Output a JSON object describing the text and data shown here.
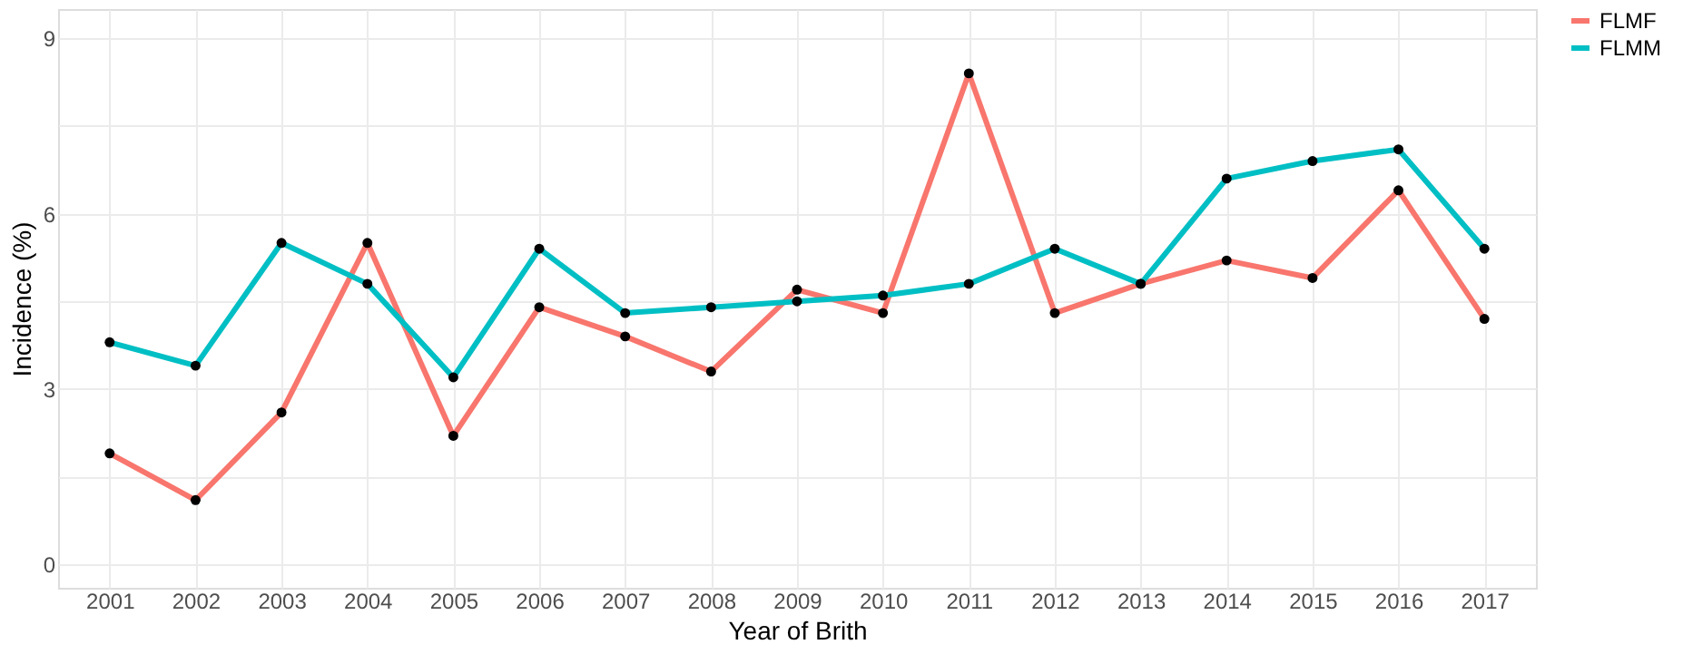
{
  "chart_data": {
    "type": "line",
    "xlabel": "Year of Brith",
    "ylabel": "Incidence (%)",
    "categories": [
      "2001",
      "2002",
      "2003",
      "2004",
      "2005",
      "2006",
      "2007",
      "2008",
      "2009",
      "2010",
      "2011",
      "2012",
      "2013",
      "2014",
      "2015",
      "2016",
      "2017"
    ],
    "series": [
      {
        "name": "FLMF",
        "color": "#f8766d",
        "values": [
          1.9,
          1.1,
          2.6,
          5.5,
          2.2,
          4.4,
          3.9,
          3.3,
          4.7,
          4.3,
          8.4,
          4.3,
          4.8,
          5.2,
          4.9,
          6.4,
          4.2
        ]
      },
      {
        "name": "FLMM",
        "color": "#00bfc4",
        "values": [
          3.8,
          3.4,
          5.5,
          4.8,
          3.2,
          5.4,
          4.3,
          4.4,
          4.5,
          4.6,
          4.8,
          5.4,
          4.8,
          6.6,
          6.9,
          7.1,
          5.4
        ]
      }
    ],
    "ylim": [
      -0.4,
      9.5
    ],
    "yticks": [
      0,
      {
        "value": 1.5,
        "label": null
      },
      3,
      {
        "value": 4.5,
        "label": null
      },
      6,
      {
        "value": 7.5,
        "label": null
      },
      9
    ],
    "grid": true,
    "legend": "right",
    "marker": "circle",
    "line_style": "solid"
  }
}
